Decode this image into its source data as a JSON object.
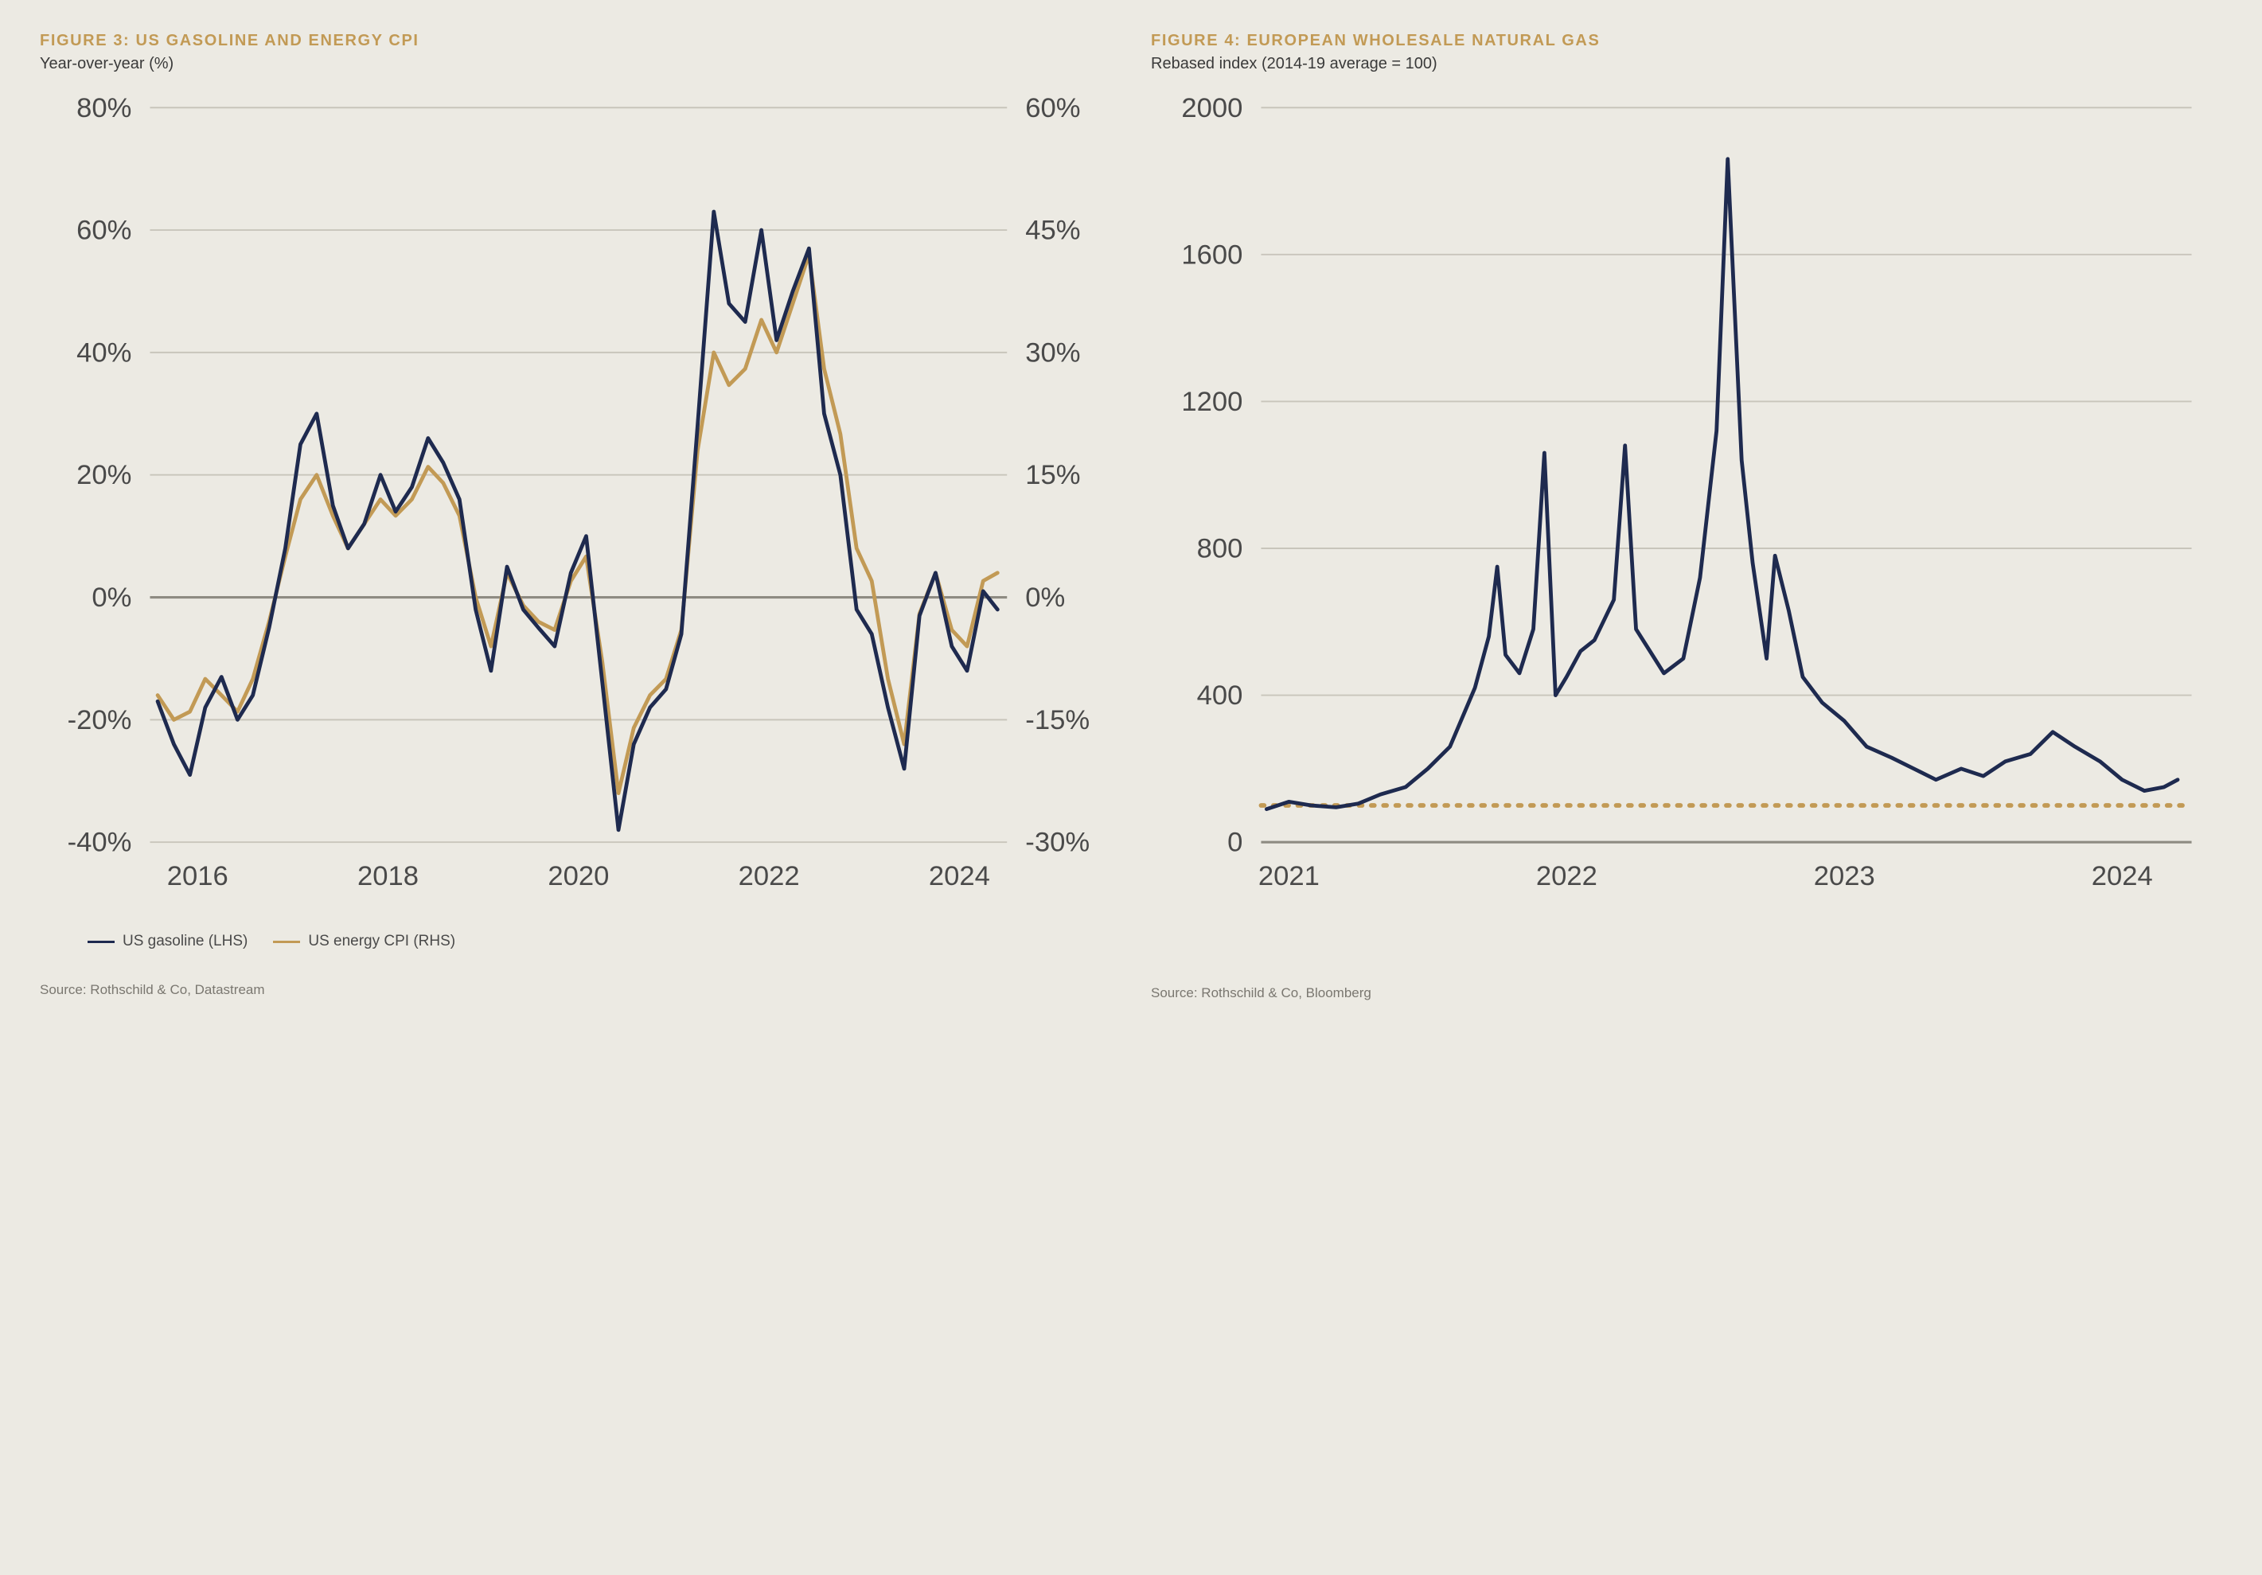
{
  "typography": {
    "title_color": "#c29a55",
    "title_fontsize": 20,
    "subtitle_color": "#3a3a3a",
    "subtitle_fontsize": 20,
    "source_color": "#7a7770",
    "source_fontsize": 17,
    "axis_color": "#4a4a4a",
    "legend_color": "#4a4a4a",
    "legend_fontsize": 19
  },
  "colors": {
    "background": "#eceae3",
    "grid": "#c8c5bb",
    "axis_line": "#8e8b82",
    "zero_line": "#8e8b82",
    "series_navy": "#1e2a4f",
    "series_gold": "#c29a55",
    "dotted_gold": "#c29a55"
  },
  "fig3": {
    "title": "FIGURE 3: US GASOLINE AND ENERGY CPI",
    "subtitle": "Year-over-year (%)",
    "source": "Source: Rothschild & Co, Datastream",
    "type": "line-dual-axis",
    "x_start": 2015.5,
    "x_end": 2024.5,
    "x_ticks": [
      2016,
      2018,
      2020,
      2022,
      2024
    ],
    "y_left_min": -40,
    "y_left_max": 80,
    "y_left_ticks": [
      -40,
      -20,
      0,
      20,
      40,
      60,
      80
    ],
    "y_left_suffix": "%",
    "y_right_min": -30,
    "y_right_max": 60,
    "y_right_ticks": [
      -30,
      -15,
      0,
      15,
      30,
      45,
      60
    ],
    "y_right_suffix": "%",
    "line_width": 2.5,
    "legend": [
      {
        "label": "US gasoline (LHS)",
        "color": "#1e2a4f"
      },
      {
        "label": "US energy CPI (RHS)",
        "color": "#c29a55"
      }
    ],
    "gasoline": [
      [
        2015.58,
        -17
      ],
      [
        2015.75,
        -24
      ],
      [
        2015.92,
        -29
      ],
      [
        2016.08,
        -18
      ],
      [
        2016.25,
        -13
      ],
      [
        2016.42,
        -20
      ],
      [
        2016.58,
        -16
      ],
      [
        2016.75,
        -5
      ],
      [
        2016.92,
        8
      ],
      [
        2017.08,
        25
      ],
      [
        2017.25,
        30
      ],
      [
        2017.42,
        15
      ],
      [
        2017.58,
        8
      ],
      [
        2017.75,
        12
      ],
      [
        2017.92,
        20
      ],
      [
        2018.08,
        14
      ],
      [
        2018.25,
        18
      ],
      [
        2018.42,
        26
      ],
      [
        2018.58,
        22
      ],
      [
        2018.75,
        16
      ],
      [
        2018.92,
        -2
      ],
      [
        2019.08,
        -12
      ],
      [
        2019.25,
        5
      ],
      [
        2019.42,
        -2
      ],
      [
        2019.58,
        -5
      ],
      [
        2019.75,
        -8
      ],
      [
        2019.92,
        4
      ],
      [
        2020.08,
        10
      ],
      [
        2020.25,
        -14
      ],
      [
        2020.42,
        -38
      ],
      [
        2020.58,
        -24
      ],
      [
        2020.75,
        -18
      ],
      [
        2020.92,
        -15
      ],
      [
        2021.08,
        -6
      ],
      [
        2021.25,
        28
      ],
      [
        2021.42,
        63
      ],
      [
        2021.58,
        48
      ],
      [
        2021.75,
        45
      ],
      [
        2021.92,
        60
      ],
      [
        2022.08,
        42
      ],
      [
        2022.25,
        50
      ],
      [
        2022.42,
        57
      ],
      [
        2022.58,
        30
      ],
      [
        2022.75,
        20
      ],
      [
        2022.92,
        -2
      ],
      [
        2023.08,
        -6
      ],
      [
        2023.25,
        -18
      ],
      [
        2023.42,
        -28
      ],
      [
        2023.58,
        -3
      ],
      [
        2023.75,
        4
      ],
      [
        2023.92,
        -8
      ],
      [
        2024.08,
        -12
      ],
      [
        2024.25,
        1
      ],
      [
        2024.4,
        -2
      ]
    ],
    "energy_cpi": [
      [
        2015.58,
        -12
      ],
      [
        2015.75,
        -15
      ],
      [
        2015.92,
        -14
      ],
      [
        2016.08,
        -10
      ],
      [
        2016.25,
        -12
      ],
      [
        2016.42,
        -14
      ],
      [
        2016.58,
        -10
      ],
      [
        2016.75,
        -3
      ],
      [
        2016.92,
        5
      ],
      [
        2017.08,
        12
      ],
      [
        2017.25,
        15
      ],
      [
        2017.42,
        10
      ],
      [
        2017.58,
        6
      ],
      [
        2017.75,
        9
      ],
      [
        2017.92,
        12
      ],
      [
        2018.08,
        10
      ],
      [
        2018.25,
        12
      ],
      [
        2018.42,
        16
      ],
      [
        2018.58,
        14
      ],
      [
        2018.75,
        10
      ],
      [
        2018.92,
        0
      ],
      [
        2019.08,
        -6
      ],
      [
        2019.25,
        3
      ],
      [
        2019.42,
        -1
      ],
      [
        2019.58,
        -3
      ],
      [
        2019.75,
        -4
      ],
      [
        2019.92,
        2
      ],
      [
        2020.08,
        5
      ],
      [
        2020.25,
        -8
      ],
      [
        2020.42,
        -24
      ],
      [
        2020.58,
        -16
      ],
      [
        2020.75,
        -12
      ],
      [
        2020.92,
        -10
      ],
      [
        2021.08,
        -4
      ],
      [
        2021.25,
        18
      ],
      [
        2021.42,
        30
      ],
      [
        2021.58,
        26
      ],
      [
        2021.75,
        28
      ],
      [
        2021.92,
        34
      ],
      [
        2022.08,
        30
      ],
      [
        2022.25,
        36
      ],
      [
        2022.42,
        42
      ],
      [
        2022.58,
        28
      ],
      [
        2022.75,
        20
      ],
      [
        2022.92,
        6
      ],
      [
        2023.08,
        2
      ],
      [
        2023.25,
        -10
      ],
      [
        2023.42,
        -18
      ],
      [
        2023.58,
        -2
      ],
      [
        2023.75,
        3
      ],
      [
        2023.92,
        -4
      ],
      [
        2024.08,
        -6
      ],
      [
        2024.25,
        2
      ],
      [
        2024.4,
        3
      ]
    ]
  },
  "fig4": {
    "title": "FIGURE 4: EUROPEAN WHOLESALE NATURAL GAS",
    "subtitle": "Rebased index (2014-19 average = 100)",
    "source": "Source: Rothschild & Co, Bloomberg",
    "type": "line",
    "x_start": 2020.9,
    "x_end": 2024.25,
    "x_ticks": [
      2021,
      2022,
      2023,
      2024
    ],
    "y_min": 0,
    "y_max": 2000,
    "y_ticks": [
      0,
      400,
      800,
      1200,
      1600,
      2000
    ],
    "baseline_value": 100,
    "line_width": 2.5,
    "dotted_width": 3,
    "series": [
      [
        2020.92,
        90
      ],
      [
        2021.0,
        110
      ],
      [
        2021.08,
        100
      ],
      [
        2021.17,
        95
      ],
      [
        2021.25,
        105
      ],
      [
        2021.33,
        130
      ],
      [
        2021.42,
        150
      ],
      [
        2021.5,
        200
      ],
      [
        2021.58,
        260
      ],
      [
        2021.67,
        420
      ],
      [
        2021.72,
        560
      ],
      [
        2021.75,
        750
      ],
      [
        2021.78,
        510
      ],
      [
        2021.83,
        460
      ],
      [
        2021.88,
        580
      ],
      [
        2021.92,
        1060
      ],
      [
        2021.96,
        400
      ],
      [
        2022.0,
        450
      ],
      [
        2022.05,
        520
      ],
      [
        2022.1,
        550
      ],
      [
        2022.17,
        660
      ],
      [
        2022.21,
        1080
      ],
      [
        2022.25,
        580
      ],
      [
        2022.3,
        520
      ],
      [
        2022.35,
        460
      ],
      [
        2022.42,
        500
      ],
      [
        2022.48,
        720
      ],
      [
        2022.54,
        1120
      ],
      [
        2022.58,
        1860
      ],
      [
        2022.63,
        1040
      ],
      [
        2022.67,
        760
      ],
      [
        2022.72,
        500
      ],
      [
        2022.75,
        780
      ],
      [
        2022.8,
        630
      ],
      [
        2022.85,
        450
      ],
      [
        2022.92,
        380
      ],
      [
        2023.0,
        330
      ],
      [
        2023.08,
        260
      ],
      [
        2023.17,
        230
      ],
      [
        2023.25,
        200
      ],
      [
        2023.33,
        170
      ],
      [
        2023.42,
        200
      ],
      [
        2023.5,
        180
      ],
      [
        2023.58,
        220
      ],
      [
        2023.67,
        240
      ],
      [
        2023.75,
        300
      ],
      [
        2023.83,
        260
      ],
      [
        2023.92,
        220
      ],
      [
        2024.0,
        170
      ],
      [
        2024.08,
        140
      ],
      [
        2024.15,
        150
      ],
      [
        2024.2,
        170
      ]
    ]
  }
}
